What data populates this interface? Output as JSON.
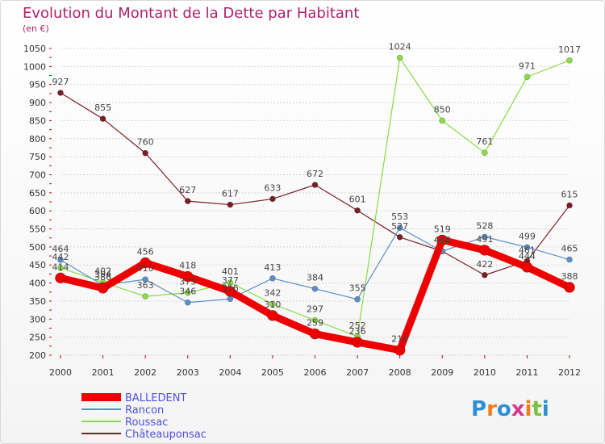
{
  "title": "Evolution du Montant de la Dette par Habitant",
  "subtitle": "(en €)",
  "logo": {
    "text": "Proxiti",
    "letter_colors": [
      "#2f8fd6",
      "#f07f1a",
      "#2f8fd6",
      "#d43a8f",
      "#f07f1a",
      "#7ac143",
      "#2f8fd6"
    ]
  },
  "colors": {
    "title": "#b0206a",
    "grid": "#d6d6d6",
    "axis_ticks": "#cc0000"
  },
  "chart_data": {
    "type": "line",
    "title": "Evolution du Montant de la Dette par Habitant",
    "subtitle": "(en €)",
    "xlabel": "",
    "ylabel": "",
    "ylim": [
      200,
      1050
    ],
    "yticks": [
      200,
      250,
      300,
      350,
      400,
      450,
      500,
      550,
      600,
      650,
      700,
      750,
      800,
      850,
      900,
      950,
      1000,
      1050
    ],
    "x": [
      "2000",
      "2001",
      "2002",
      "2003",
      "2004",
      "2005",
      "2006",
      "2007",
      "2008",
      "2009",
      "2010",
      "2011",
      "2012"
    ],
    "grid": "horizontal",
    "legend": "bottom-left",
    "series": [
      {
        "name": "Châteauponsac",
        "color": "#7a1f24",
        "width": 1.2,
        "values": [
          927,
          855,
          760,
          627,
          617,
          633,
          672,
          601,
          527,
          488,
          422,
          461,
          615
        ]
      },
      {
        "name": "Roussac",
        "color": "#88dd44",
        "width": 1.2,
        "values": [
          442,
          402,
          363,
          373,
          401,
          342,
          297,
          252,
          1024,
          850,
          761,
          971,
          1017
        ]
      },
      {
        "name": "Rancon",
        "color": "#5b8fc7",
        "width": 1.2,
        "values": [
          464,
          394,
          410,
          346,
          356,
          413,
          384,
          355,
          553,
          488,
          528,
          499,
          465
        ]
      },
      {
        "name": "BALLEDENT",
        "color": "#ee0000",
        "width": 9,
        "values": [
          414,
          386,
          456,
          418,
          377,
          310,
          259,
          236,
          214,
          519,
          491,
          444,
          388
        ]
      }
    ]
  }
}
